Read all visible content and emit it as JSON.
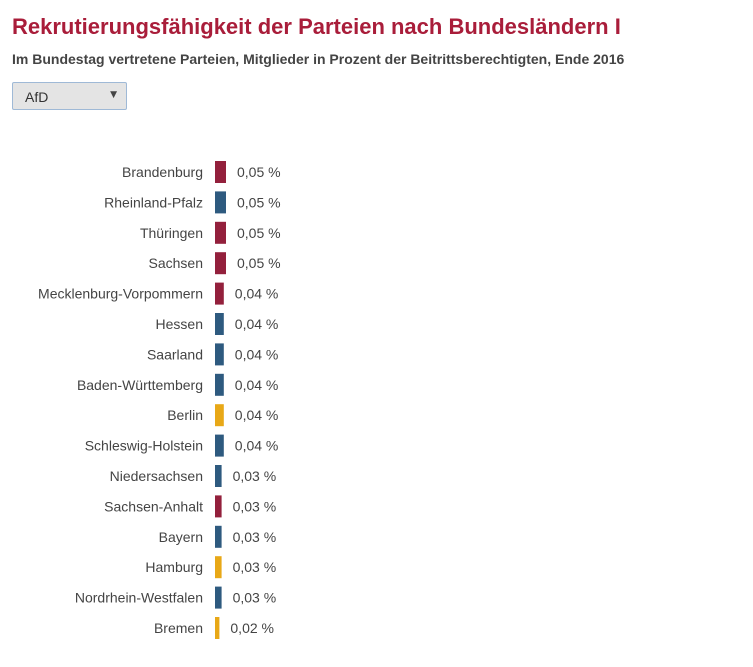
{
  "title": "Rekrutierungsfähigkeit der Parteien nach Bundesländern I",
  "subtitle": "Im Bundestag vertretene Parteien, Mitglieder in Prozent der Beitrittsberechtigten, Ende 2016",
  "party_select": {
    "selected": "AfD",
    "arrow_icon": "triangle-down-icon"
  },
  "colors": {
    "title": "#a91d3a",
    "red": "#93203c",
    "blue": "#2e5a7f",
    "yellow": "#e8a817"
  },
  "chart_data": {
    "type": "bar",
    "orientation": "horizontal",
    "unit": "%",
    "categories": [
      "Brandenburg",
      "Rheinland-Pfalz",
      "Thüringen",
      "Sachsen",
      "Mecklenburg-Vorpommern",
      "Hessen",
      "Saarland",
      "Baden-Württemberg",
      "Berlin",
      "Schleswig-Holstein",
      "Niedersachsen",
      "Sachsen-Anhalt",
      "Bayern",
      "Hamburg",
      "Nordrhein-Westfalen",
      "Bremen"
    ],
    "values": [
      0.05,
      0.05,
      0.05,
      0.05,
      0.04,
      0.04,
      0.04,
      0.04,
      0.04,
      0.04,
      0.03,
      0.03,
      0.03,
      0.03,
      0.03,
      0.02
    ],
    "value_labels": [
      "0,05 %",
      "0,05 %",
      "0,05 %",
      "0,05 %",
      "0,04 %",
      "0,04 %",
      "0,04 %",
      "0,04 %",
      "0,04 %",
      "0,04 %",
      "0,03 %",
      "0,03 %",
      "0,03 %",
      "0,03 %",
      "0,03 %",
      "0,02 %"
    ],
    "bar_colors": [
      "#93203c",
      "#2e5a7f",
      "#93203c",
      "#93203c",
      "#93203c",
      "#2e5a7f",
      "#2e5a7f",
      "#2e5a7f",
      "#e8a817",
      "#2e5a7f",
      "#2e5a7f",
      "#93203c",
      "#2e5a7f",
      "#e8a817",
      "#2e5a7f",
      "#e8a817"
    ],
    "xlim": [
      0,
      0.05
    ],
    "grid": false,
    "legend": "none"
  }
}
